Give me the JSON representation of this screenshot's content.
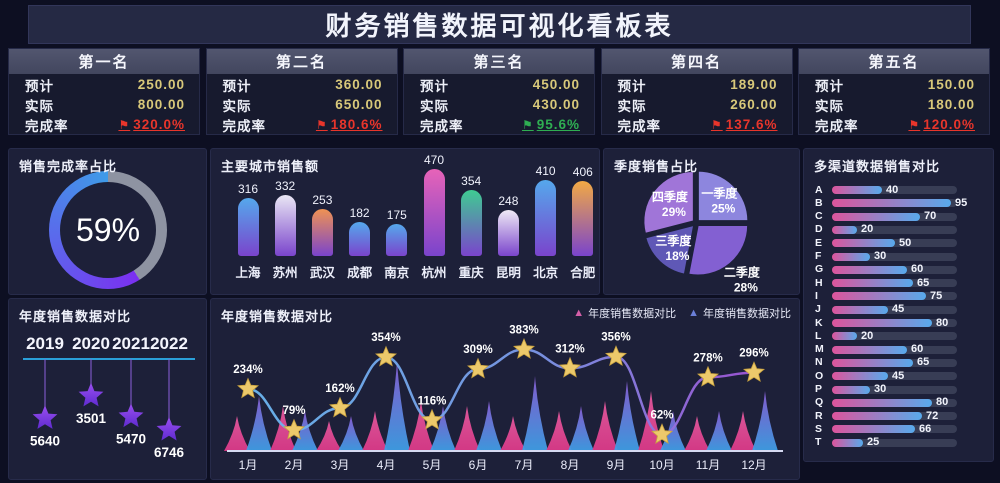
{
  "title": "财务销售数据可视化看板表",
  "colors": {
    "background": "#0d0f22",
    "panel": "#1d2039",
    "card_header": "#4a4e66",
    "gold_value": "#d8c87a",
    "red": "#e8352b",
    "green": "#2fae52"
  },
  "kpi": {
    "labels": {
      "expected": "预计",
      "actual": "实际",
      "rate": "完成率"
    },
    "flag_glyph": "⚑",
    "cards": [
      {
        "rank": "第一名",
        "expected": "250.00",
        "actual": "800.00",
        "rate": "320.0%",
        "rate_color": "#e8352b"
      },
      {
        "rank": "第二名",
        "expected": "360.00",
        "actual": "650.00",
        "rate": "180.6%",
        "rate_color": "#e8352b"
      },
      {
        "rank": "第三名",
        "expected": "450.00",
        "actual": "430.00",
        "rate": "95.6%",
        "rate_color": "#2fae52"
      },
      {
        "rank": "第四名",
        "expected": "189.00",
        "actual": "260.00",
        "rate": "137.6%",
        "rate_color": "#e8352b"
      },
      {
        "rank": "第五名",
        "expected": "150.00",
        "actual": "180.00",
        "rate": "120.0%",
        "rate_color": "#e8352b"
      }
    ]
  },
  "chart_data": [
    {
      "id": "sales_completion_donut",
      "type": "pie",
      "variant": "donut",
      "title": "销售完成率占比",
      "value_pct": 59,
      "center_label": "59%",
      "ring_colors": [
        "#3f9be8",
        "#7b2ff0"
      ],
      "track_color": "#8e93a2"
    },
    {
      "id": "city_sales",
      "type": "bar",
      "title": "主要城市销售额",
      "categories": [
        "上海",
        "苏州",
        "武汉",
        "成都",
        "南京",
        "杭州",
        "重庆",
        "昆明",
        "北京",
        "合肥"
      ],
      "values": [
        316,
        332,
        253,
        182,
        175,
        470,
        354,
        248,
        410,
        406
      ],
      "ymax": 470,
      "bottom_color": "#7a44cc",
      "top_colors": [
        "#55a8ec",
        "#e9e6f4",
        "#ef9253",
        "#55a8ec",
        "#55a8ec",
        "#e763b8",
        "#3fcb92",
        "#efeaf6",
        "#55a8ec",
        "#f2a944"
      ]
    },
    {
      "id": "quarterly_pie",
      "type": "pie",
      "title": "季度销售占比",
      "slices": [
        {
          "label": "一季度",
          "pct": 25,
          "color": "#8d86de"
        },
        {
          "label": "二季度",
          "pct": 28,
          "color": "#8360d2"
        },
        {
          "label": "三季度",
          "pct": 18,
          "color": "#5f58b6"
        },
        {
          "label": "四季度",
          "pct": 29,
          "color": "#a075d8"
        }
      ]
    },
    {
      "id": "channel_sales",
      "type": "bar",
      "orientation": "horizontal",
      "title": "多渠道数据销售对比",
      "xmax": 100,
      "categories": [
        "A",
        "B",
        "C",
        "D",
        "E",
        "F",
        "G",
        "H",
        "I",
        "J",
        "K",
        "L",
        "M",
        "N",
        "O",
        "P",
        "Q",
        "R",
        "S",
        "T"
      ],
      "values": [
        40,
        95,
        70,
        20,
        50,
        30,
        60,
        65,
        75,
        45,
        80,
        20,
        60,
        65,
        45,
        30,
        80,
        72,
        66,
        25
      ],
      "bar_gradient": [
        "#dd549c",
        "#58aaec"
      ],
      "track_color": "#383d55"
    },
    {
      "id": "yearly_stars",
      "type": "scatter",
      "title": "年度销售数据对比",
      "categories": [
        "2019",
        "2020",
        "2021",
        "2022"
      ],
      "values": [
        5640,
        3501,
        5470,
        6746
      ],
      "marker": "star",
      "marker_colors": [
        "#9a4ff0",
        "#5f2bd0"
      ],
      "axis_color": "#2a9fd8"
    },
    {
      "id": "monthly_compare",
      "type": "line",
      "title": "年度销售数据对比",
      "categories": [
        "1月",
        "2月",
        "3月",
        "4月",
        "5月",
        "6月",
        "7月",
        "8月",
        "9月",
        "10月",
        "11月",
        "12月"
      ],
      "ylim_pct": [
        0,
        400
      ],
      "series": [
        {
          "name": "年度销售数据对比",
          "type": "line",
          "marker": "star",
          "marker_color": "#ecc96b",
          "values_pct": [
            234,
            79,
            162,
            354,
            116,
            309,
            383,
            312,
            356,
            62,
            278,
            296
          ]
        },
        {
          "name": "年度销售数据对比",
          "type": "area-spikes",
          "note": "estimated decorative peak heights",
          "pink_peaks": [
            35,
            45,
            30,
            40,
            50,
            45,
            35,
            40,
            50,
            60,
            35,
            40
          ],
          "blue_peaks": [
            55,
            40,
            35,
            90,
            45,
            50,
            75,
            45,
            70,
            40,
            40,
            60
          ]
        }
      ],
      "legend": [
        {
          "label": "年度销售数据对比",
          "color": "#d45fa8"
        },
        {
          "label": "年度销售数据对比",
          "color": "#6b7fd8"
        }
      ]
    }
  ]
}
